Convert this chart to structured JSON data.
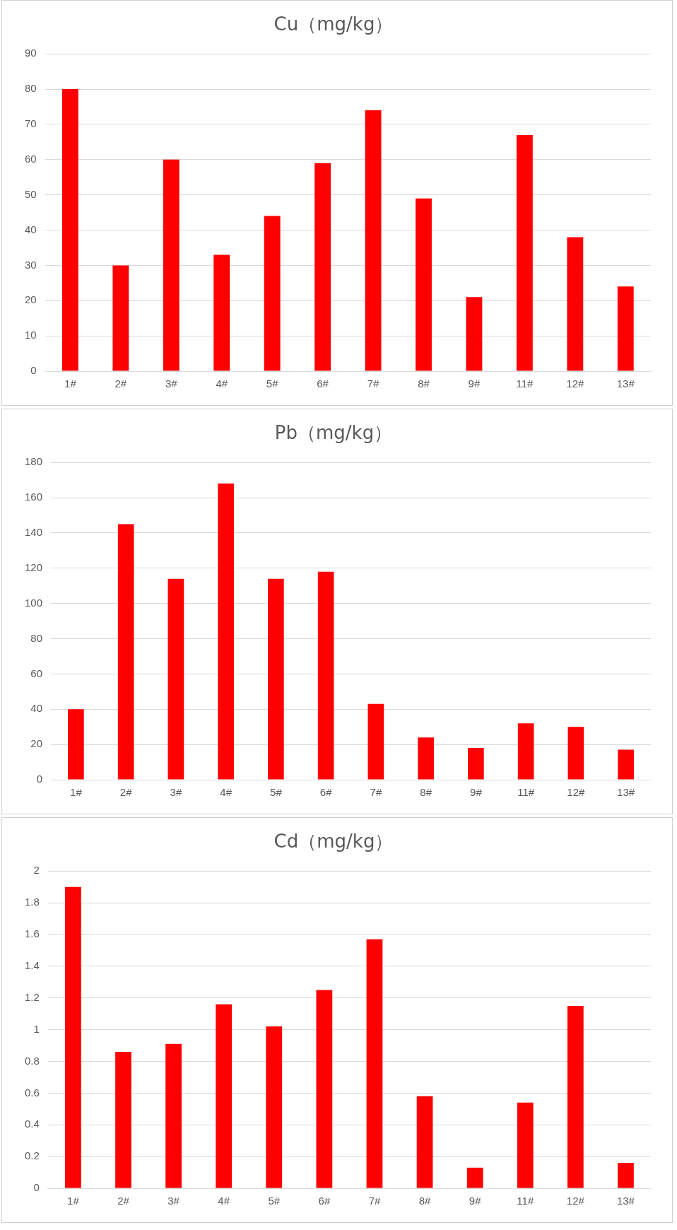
{
  "chart_data": [
    {
      "type": "bar",
      "title": "Cu（mg/kg）",
      "categories": [
        "1#",
        "2#",
        "3#",
        "4#",
        "5#",
        "6#",
        "7#",
        "8#",
        "9#",
        "11#",
        "12#",
        "13#"
      ],
      "values": [
        80,
        30,
        60,
        33,
        44,
        59,
        74,
        49,
        21,
        67,
        38,
        24
      ],
      "color": "#ff0000",
      "ylim": [
        0,
        90
      ],
      "yticks": [
        0,
        10,
        20,
        30,
        40,
        50,
        60,
        70,
        80,
        90
      ],
      "grid": "y"
    },
    {
      "type": "bar",
      "title": "Pb（mg/kg）",
      "categories": [
        "1#",
        "2#",
        "3#",
        "4#",
        "5#",
        "6#",
        "7#",
        "8#",
        "9#",
        "11#",
        "12#",
        "13#"
      ],
      "values": [
        40,
        145,
        114,
        168,
        114,
        118,
        43,
        24,
        18,
        32,
        30,
        17
      ],
      "color": "#ff0000",
      "ylim": [
        0,
        180
      ],
      "yticks": [
        0,
        20,
        40,
        60,
        80,
        100,
        120,
        140,
        160,
        180
      ],
      "grid": "y"
    },
    {
      "type": "bar",
      "title": "Cd（mg/kg）",
      "categories": [
        "1#",
        "2#",
        "3#",
        "4#",
        "5#",
        "6#",
        "7#",
        "8#",
        "9#",
        "11#",
        "12#",
        "13#"
      ],
      "values": [
        1.9,
        0.86,
        0.91,
        1.16,
        1.02,
        1.25,
        1.57,
        0.58,
        0.13,
        0.54,
        1.15,
        0.16
      ],
      "color": "#ff0000",
      "ylim": [
        0,
        2
      ],
      "yticks": [
        0,
        0.2,
        0.4,
        0.6,
        0.8,
        1,
        1.2,
        1.4,
        1.6,
        1.8,
        2
      ],
      "grid": "y"
    }
  ]
}
